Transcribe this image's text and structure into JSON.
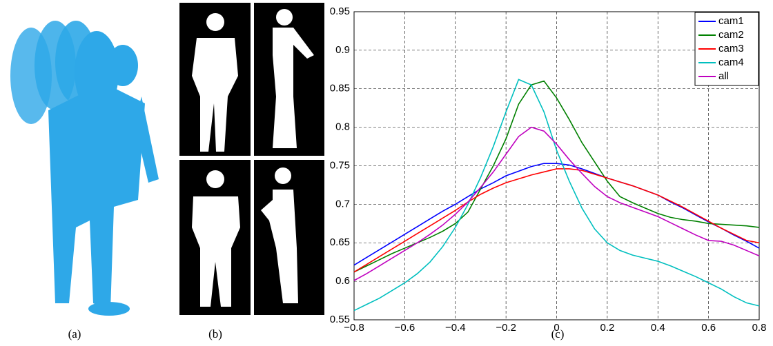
{
  "captions": [
    "(a)",
    "(b)",
    "(c)"
  ],
  "chart_data": {
    "type": "line",
    "x": [
      -0.8,
      -0.75,
      -0.7,
      -0.65,
      -0.6,
      -0.55,
      -0.5,
      -0.45,
      -0.4,
      -0.35,
      -0.3,
      -0.25,
      -0.2,
      -0.15,
      -0.1,
      -0.05,
      0,
      0.05,
      0.1,
      0.15,
      0.2,
      0.25,
      0.3,
      0.35,
      0.4,
      0.45,
      0.5,
      0.55,
      0.6,
      0.65,
      0.7,
      0.75,
      0.8
    ],
    "series": [
      {
        "name": "cam1",
        "color": "#0000ff",
        "values": [
          0.621,
          0.631,
          0.641,
          0.651,
          0.661,
          0.671,
          0.681,
          0.691,
          0.7,
          0.71,
          0.72,
          0.728,
          0.737,
          0.743,
          0.749,
          0.753,
          0.753,
          0.751,
          0.746,
          0.74,
          0.734,
          0.729,
          0.724,
          0.718,
          0.712,
          0.703,
          0.695,
          0.686,
          0.677,
          0.669,
          0.66,
          0.652,
          0.643
        ]
      },
      {
        "name": "cam2",
        "color": "#008000",
        "values": [
          0.612,
          0.62,
          0.628,
          0.636,
          0.643,
          0.65,
          0.657,
          0.665,
          0.675,
          0.69,
          0.72,
          0.75,
          0.785,
          0.83,
          0.855,
          0.86,
          0.838,
          0.81,
          0.78,
          0.755,
          0.73,
          0.71,
          0.702,
          0.695,
          0.688,
          0.683,
          0.68,
          0.678,
          0.675,
          0.674,
          0.673,
          0.672,
          0.67
        ]
      },
      {
        "name": "cam3",
        "color": "#ff0000",
        "values": [
          0.612,
          0.622,
          0.632,
          0.642,
          0.652,
          0.662,
          0.672,
          0.682,
          0.692,
          0.703,
          0.713,
          0.721,
          0.728,
          0.733,
          0.738,
          0.742,
          0.746,
          0.746,
          0.744,
          0.739,
          0.734,
          0.729,
          0.724,
          0.718,
          0.712,
          0.704,
          0.696,
          0.687,
          0.678,
          0.669,
          0.661,
          0.653,
          0.65
        ]
      },
      {
        "name": "cam4",
        "color": "#00bfbf",
        "values": [
          0.562,
          0.57,
          0.578,
          0.588,
          0.598,
          0.61,
          0.625,
          0.645,
          0.67,
          0.7,
          0.735,
          0.775,
          0.82,
          0.862,
          0.855,
          0.82,
          0.77,
          0.73,
          0.695,
          0.668,
          0.65,
          0.64,
          0.634,
          0.63,
          0.626,
          0.62,
          0.613,
          0.606,
          0.598,
          0.59,
          0.58,
          0.572,
          0.568
        ]
      },
      {
        "name": "all",
        "color": "#bf00bf",
        "values": [
          0.601,
          0.61,
          0.62,
          0.63,
          0.64,
          0.65,
          0.661,
          0.673,
          0.687,
          0.703,
          0.722,
          0.742,
          0.765,
          0.788,
          0.8,
          0.795,
          0.778,
          0.758,
          0.74,
          0.723,
          0.71,
          0.702,
          0.696,
          0.69,
          0.684,
          0.676,
          0.668,
          0.66,
          0.653,
          0.652,
          0.647,
          0.64,
          0.633
        ]
      }
    ],
    "xlim": [
      -0.8,
      0.8
    ],
    "xticks": [
      {
        "value": -0.8,
        "label": "−0.8"
      },
      {
        "value": -0.6,
        "label": "−0.6"
      },
      {
        "value": -0.4,
        "label": "−0.4"
      },
      {
        "value": -0.2,
        "label": "−0.2"
      },
      0,
      0.2,
      0.4,
      0.6,
      0.8
    ],
    "ylim": [
      0.55,
      0.95
    ],
    "yticks": [
      0.55,
      0.6,
      0.65,
      0.7,
      0.75,
      0.8,
      0.85,
      0.9,
      0.95
    ],
    "grid": true,
    "legend": "top-right"
  }
}
